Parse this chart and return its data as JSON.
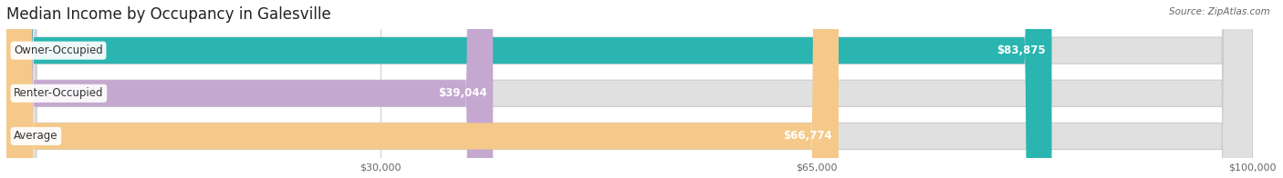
{
  "title": "Median Income by Occupancy in Galesville",
  "source": "Source: ZipAtlas.com",
  "categories": [
    "Owner-Occupied",
    "Renter-Occupied",
    "Average"
  ],
  "values": [
    83875,
    39044,
    66774
  ],
  "bar_colors": [
    "#2ab5b0",
    "#c4a8d0",
    "#f5c98a"
  ],
  "bar_bg_color": "#e0e0e0",
  "bar_border_color": "#cccccc",
  "value_labels": [
    "$83,875",
    "$39,044",
    "$66,774"
  ],
  "xmin": 0,
  "xmax": 100000,
  "xticks": [
    30000,
    65000,
    100000
  ],
  "xtick_labels": [
    "$30,000",
    "$65,000",
    "$100,000"
  ],
  "title_fontsize": 12,
  "label_fontsize": 8.5,
  "value_fontsize": 8.5,
  "bar_height": 0.62,
  "bar_gap": 0.18,
  "background_color": "#ffffff",
  "grid_color": "#d0d0d0"
}
